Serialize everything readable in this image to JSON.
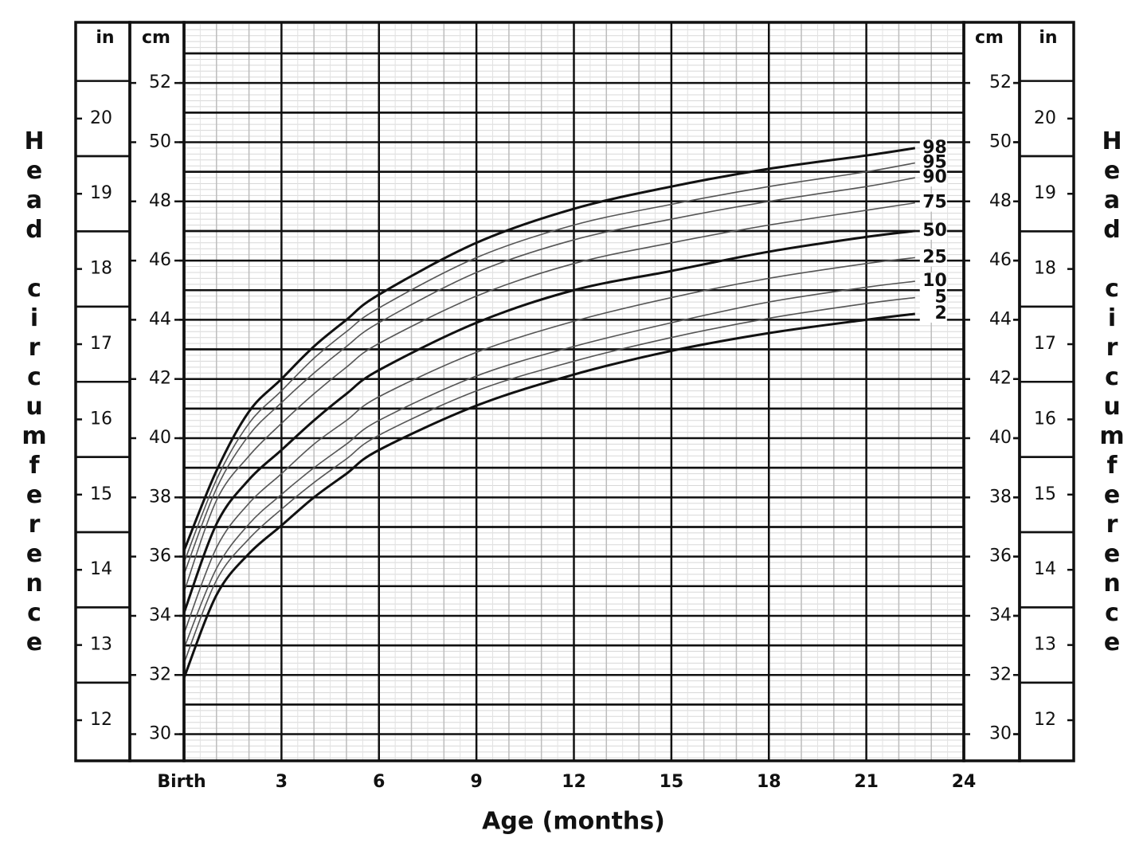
{
  "chart_data": {
    "type": "line",
    "y_label": "Head circumference",
    "x_label": "Age (months)",
    "y_unit": "cm",
    "y2_unit": "in",
    "x": [
      0,
      1,
      2,
      3,
      4,
      5,
      6,
      9,
      12,
      15,
      18,
      21,
      22.5
    ],
    "xlim": [
      0,
      24
    ],
    "xticks": [
      {
        "value": 0,
        "label": "Birth"
      },
      3,
      6,
      9,
      12,
      15,
      18,
      21,
      24
    ],
    "ylim": [
      29.1,
      54.05
    ],
    "yticks": [
      30,
      32,
      34,
      36,
      38,
      40,
      42,
      44,
      46,
      48,
      50,
      52
    ],
    "y2lim": [
      11.46,
      21.28
    ],
    "y2ticks": [
      12,
      13,
      14,
      15,
      16,
      17,
      18,
      19,
      20
    ],
    "grid": true,
    "series": [
      {
        "name": "98",
        "color": "#111111",
        "line_width": 3,
        "values": [
          36.2,
          38.9,
          40.9,
          42.0,
          43.1,
          44.0,
          44.85,
          46.6,
          47.75,
          48.5,
          49.1,
          49.55,
          49.8
        ]
      },
      {
        "name": "95",
        "color": "#555555",
        "line_width": 1.6,
        "values": [
          35.8,
          38.6,
          40.5,
          41.6,
          42.7,
          43.6,
          44.4,
          46.1,
          47.2,
          47.9,
          48.5,
          49.0,
          49.3
        ]
      },
      {
        "name": "90",
        "color": "#555555",
        "line_width": 1.6,
        "values": [
          35.4,
          38.3,
          40.1,
          41.2,
          42.2,
          43.1,
          43.9,
          45.6,
          46.7,
          47.4,
          48.0,
          48.5,
          48.8
        ]
      },
      {
        "name": "75",
        "color": "#555555",
        "line_width": 1.6,
        "values": [
          34.8,
          37.9,
          39.4,
          40.5,
          41.5,
          42.4,
          43.2,
          44.8,
          45.9,
          46.6,
          47.2,
          47.7,
          47.95
        ]
      },
      {
        "name": "50",
        "color": "#111111",
        "line_width": 3,
        "values": [
          34.1,
          37.1,
          38.6,
          39.6,
          40.6,
          41.5,
          42.3,
          43.9,
          45.0,
          45.65,
          46.3,
          46.8,
          47.0
        ]
      },
      {
        "name": "25",
        "color": "#555555",
        "line_width": 1.6,
        "values": [
          33.4,
          36.3,
          37.8,
          38.8,
          39.8,
          40.6,
          41.4,
          42.9,
          43.95,
          44.75,
          45.4,
          45.9,
          46.1
        ]
      },
      {
        "name": "10",
        "color": "#555555",
        "line_width": 1.6,
        "values": [
          32.9,
          35.6,
          37.1,
          38.1,
          39.0,
          39.8,
          40.6,
          42.1,
          43.1,
          43.9,
          44.6,
          45.1,
          45.3
        ]
      },
      {
        "name": "5",
        "color": "#555555",
        "line_width": 1.6,
        "values": [
          32.4,
          35.2,
          36.6,
          37.6,
          38.5,
          39.3,
          40.1,
          41.6,
          42.6,
          43.4,
          44.05,
          44.55,
          44.75
        ]
      },
      {
        "name": "2",
        "color": "#111111",
        "line_width": 3,
        "values": [
          31.9,
          34.7,
          36.1,
          37.05,
          38.0,
          38.8,
          39.6,
          41.1,
          42.15,
          42.95,
          43.55,
          44.0,
          44.2
        ]
      }
    ]
  }
}
